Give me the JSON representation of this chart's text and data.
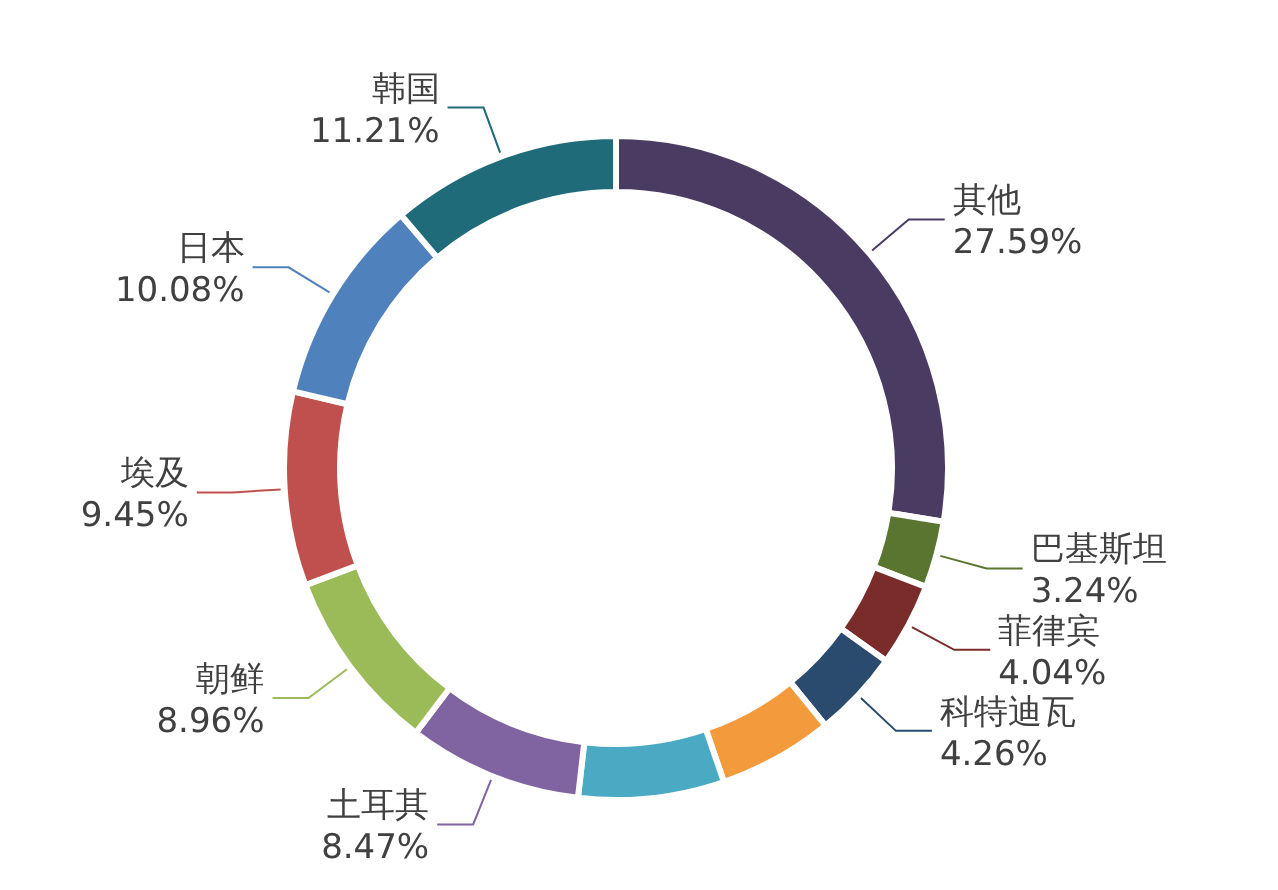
{
  "chart_data": {
    "type": "donut",
    "categories": [
      "其他",
      "巴基斯坦",
      "菲律宾",
      "科特迪瓦",
      null,
      null,
      "土耳其",
      "朝鲜",
      "埃及",
      "日本",
      "韩国"
    ],
    "values": [
      27.59,
      3.24,
      4.04,
      4.26,
      5.6,
      7.1,
      8.47,
      8.96,
      9.45,
      10.08,
      11.21
    ],
    "value_labels": [
      "27.59%",
      "3.24%",
      "4.04%",
      "4.26%",
      null,
      null,
      "8.47%",
      "8.96%",
      "9.45%",
      "10.08%",
      "11.21%"
    ],
    "colors": [
      "#4a3b63",
      "#5a7530",
      "#7a2c2a",
      "#2a4a6e",
      "#f39a3c",
      "#4aaac4",
      "#8064a2",
      "#9bbb59",
      "#c0504d",
      "#4f81bd",
      "#1f6b7a"
    ]
  }
}
